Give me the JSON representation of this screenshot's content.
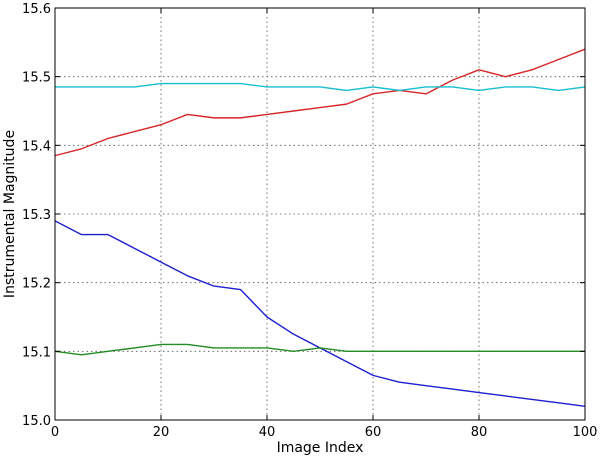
{
  "chart_data": {
    "type": "line",
    "xlabel": "Image Index",
    "ylabel": "Instrumental Magnitude",
    "xlim": [
      0,
      100
    ],
    "ylim": [
      15.0,
      15.6
    ],
    "xticks": [
      "0",
      "20",
      "40",
      "60",
      "80",
      "100"
    ],
    "yticks": [
      "15.0",
      "15.1",
      "15.2",
      "15.3",
      "15.4",
      "15.5",
      "15.6"
    ],
    "grid": true,
    "x": [
      0,
      5,
      10,
      15,
      20,
      25,
      30,
      35,
      40,
      45,
      50,
      55,
      60,
      65,
      70,
      75,
      80,
      85,
      90,
      95,
      100
    ],
    "series": [
      {
        "color": "#d62728",
        "values": [
          15.385,
          15.395,
          15.41,
          15.42,
          15.43,
          15.445,
          15.44,
          15.44,
          15.445,
          15.45,
          15.455,
          15.46,
          15.475,
          15.48,
          15.475,
          15.495,
          15.51,
          15.5,
          15.51,
          15.525,
          15.54
        ]
      },
      {
        "color": "#17becf",
        "values": [
          15.485,
          15.485,
          15.485,
          15.485,
          15.49,
          15.49,
          15.49,
          15.49,
          15.485,
          15.485,
          15.485,
          15.48,
          15.485,
          15.48,
          15.485,
          15.485,
          15.48,
          15.485,
          15.485,
          15.48,
          15.485
        ]
      },
      {
        "color": "#1f1fcf",
        "values": [
          15.29,
          15.27,
          15.27,
          15.25,
          15.23,
          15.21,
          15.195,
          15.19,
          15.15,
          15.125,
          15.105,
          15.085,
          15.065,
          15.055,
          15.05,
          15.045,
          15.04,
          15.035,
          15.03,
          15.025,
          15.02
        ]
      },
      {
        "color": "#228b22",
        "values": [
          15.1,
          15.095,
          15.1,
          15.105,
          15.11,
          15.11,
          15.105,
          15.105,
          15.105,
          15.1,
          15.105,
          15.1,
          15.1,
          15.1,
          15.1,
          15.1,
          15.1,
          15.1,
          15.1,
          15.1,
          15.1
        ]
      }
    ]
  }
}
